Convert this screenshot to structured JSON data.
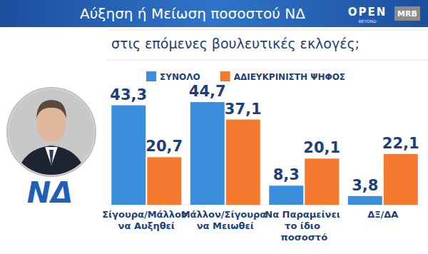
{
  "chart_data": {
    "type": "bar",
    "title": "Αύξηση ή Μείωση ποσοστού ΝΔ",
    "subtitle": "στις επόμενες βουλευτικές εκλογές;",
    "annotations": [
      "OPEN",
      "BEYOND",
      "MRB",
      "ΝΔ"
    ],
    "categories": [
      "Σίγουρα/Μάλλον να Αυξηθεί",
      "Μάλλον/Σίγουρα να Μειωθεί",
      "Να Παραμείνει το ίδιο ποσοστό",
      "ΔΞ/ΔΑ"
    ],
    "series": [
      {
        "name": "ΣΥΝΟΛΟ",
        "color": "#3a8edb",
        "values": [
          43.3,
          44.7,
          8.3,
          3.8
        ],
        "value_labels": [
          "43,3",
          "44,7",
          "8,3",
          "3,8"
        ]
      },
      {
        "name": "ΑΔΙΕΥΚΡΙΝΙΣΤΗ ΨΗΦΟΣ",
        "color": "#f47a30",
        "values": [
          20.7,
          37.1,
          20.1,
          22.1
        ],
        "value_labels": [
          "20,7",
          "37,1",
          "20,1",
          "22,1"
        ]
      }
    ],
    "ylim": [
      0,
      50
    ],
    "data_labels": true,
    "tick_labels": "x",
    "legend": "top",
    "grid": false
  }
}
